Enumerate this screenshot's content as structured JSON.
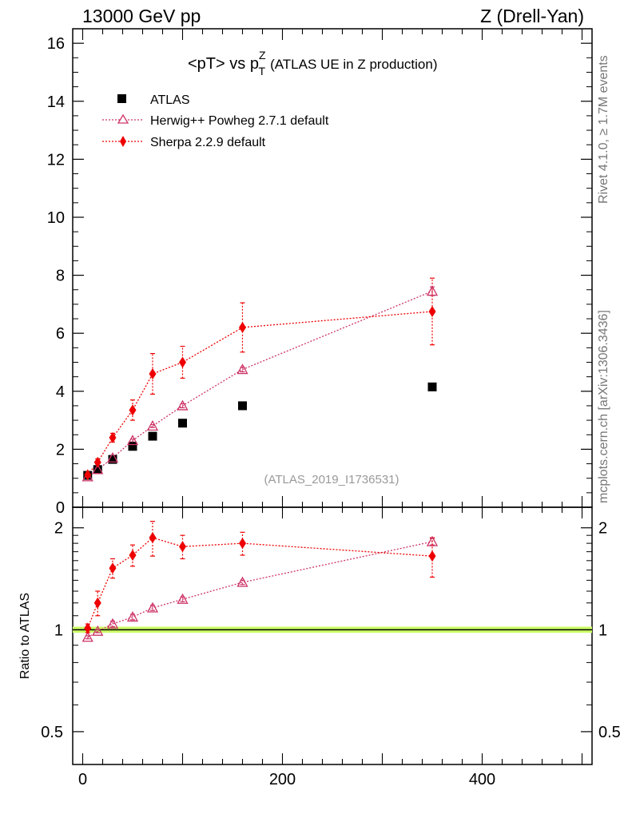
{
  "header": {
    "left": "13000 GeV pp",
    "right": "Z (Drell-Yan)"
  },
  "chart_data": {
    "type": "scatter",
    "title_main": "<pT> vs p",
    "title_sup": "Z",
    "title_sub": "T",
    "title_rest": "(ATLAS UE in Z production)",
    "watermark": "(ATLAS_2019_I1736531)",
    "side_label_top": "Rivet 4.1.0, ≥ 1.7M events",
    "side_label_bottom": "mcplots.cern.ch [arXiv:1306.3436]",
    "ratio_ylabel": "Ratio to ATLAS",
    "xlim": [
      -10,
      510
    ],
    "ylim_main": [
      0,
      16.5
    ],
    "ylim_ratio": [
      0.4,
      2.3
    ],
    "x_ticks": [
      "0",
      "200",
      "400"
    ],
    "y_ticks_main": [
      "0",
      "2",
      "4",
      "6",
      "8",
      "10",
      "12",
      "14",
      "16"
    ],
    "y_ticks_ratio": [
      "0.5",
      "1",
      "2"
    ],
    "x": [
      5,
      15,
      30,
      50,
      70,
      100,
      160,
      350
    ],
    "series": [
      {
        "name": "ATLAS",
        "color": "#000000",
        "values": [
          1.1,
          1.3,
          1.65,
          2.1,
          2.45,
          2.9,
          3.5,
          4.15
        ]
      },
      {
        "name": "Herwig++ Powheg 2.7.1 default",
        "color": "#cc3366",
        "values": [
          1.05,
          1.3,
          1.7,
          2.3,
          2.8,
          3.5,
          4.75,
          7.45
        ],
        "errors": [
          0.03,
          0.03,
          0.04,
          0.05,
          0.05,
          0.07,
          0.08,
          0.15
        ],
        "ratio": [
          0.95,
          0.99,
          1.04,
          1.09,
          1.16,
          1.23,
          1.38,
          1.82
        ],
        "ratio_errors": [
          0.01,
          0.01,
          0.02,
          0.02,
          0.02,
          0.02,
          0.02,
          0.04
        ]
      },
      {
        "name": "Sherpa 2.2.9 default",
        "color": "#ee0000",
        "values": [
          1.12,
          1.55,
          2.4,
          3.35,
          4.6,
          5.0,
          6.2,
          6.75
        ],
        "errors": [
          0.05,
          0.12,
          0.15,
          0.35,
          0.7,
          0.55,
          0.85,
          1.15
        ],
        "ratio": [
          1.01,
          1.2,
          1.52,
          1.66,
          1.87,
          1.76,
          1.8,
          1.65
        ],
        "ratio_errors": [
          0.03,
          0.1,
          0.1,
          0.12,
          0.22,
          0.14,
          0.14,
          0.22
        ]
      }
    ],
    "ratio_band": 0.01
  }
}
